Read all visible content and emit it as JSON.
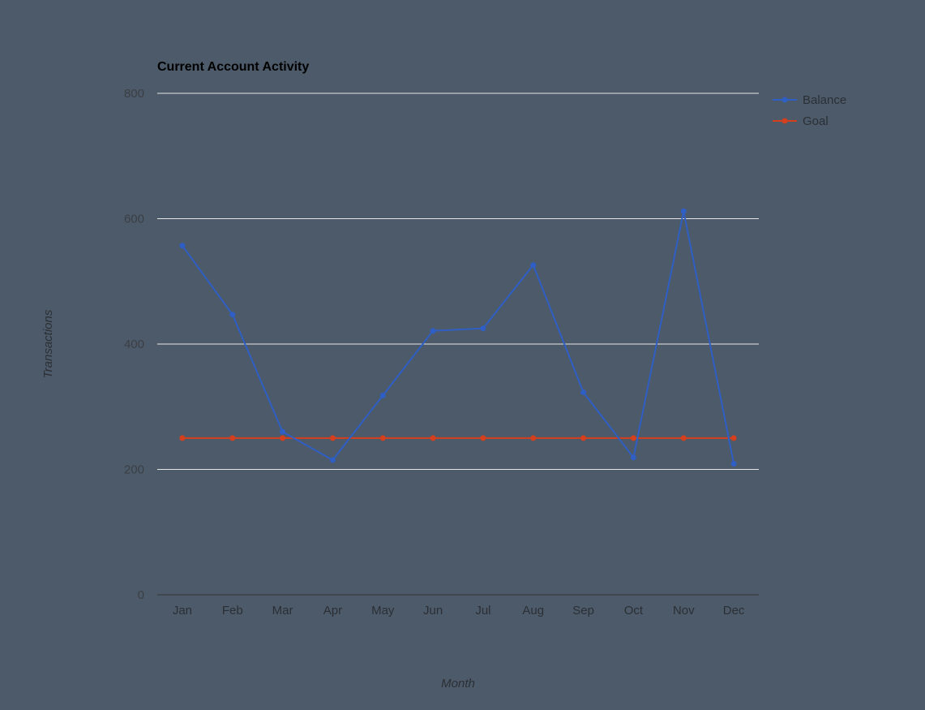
{
  "colors": {
    "background": "#4c5a69",
    "balance": "#2f5fc4",
    "goal": "#d43f1e",
    "grid": "#e6e6e6"
  },
  "chart_data": {
    "type": "line",
    "title": "Current Account Activity",
    "xlabel": "Month",
    "ylabel": "Transactions",
    "categories": [
      "Jan",
      "Feb",
      "Mar",
      "Apr",
      "May",
      "Jun",
      "Jul",
      "Aug",
      "Sep",
      "Oct",
      "Nov",
      "Dec"
    ],
    "ylim": [
      0,
      800
    ],
    "yticks": [
      0,
      200,
      400,
      600,
      800
    ],
    "grid": true,
    "legend_position": "right",
    "series": [
      {
        "name": "Balance",
        "color": "#2f5fc4",
        "values": [
          557,
          447,
          260,
          215,
          318,
          421,
          425,
          526,
          323,
          219,
          612,
          209
        ]
      },
      {
        "name": "Goal",
        "color": "#d43f1e",
        "values": [
          250,
          250,
          250,
          250,
          250,
          250,
          250,
          250,
          250,
          250,
          250,
          250
        ]
      }
    ]
  }
}
